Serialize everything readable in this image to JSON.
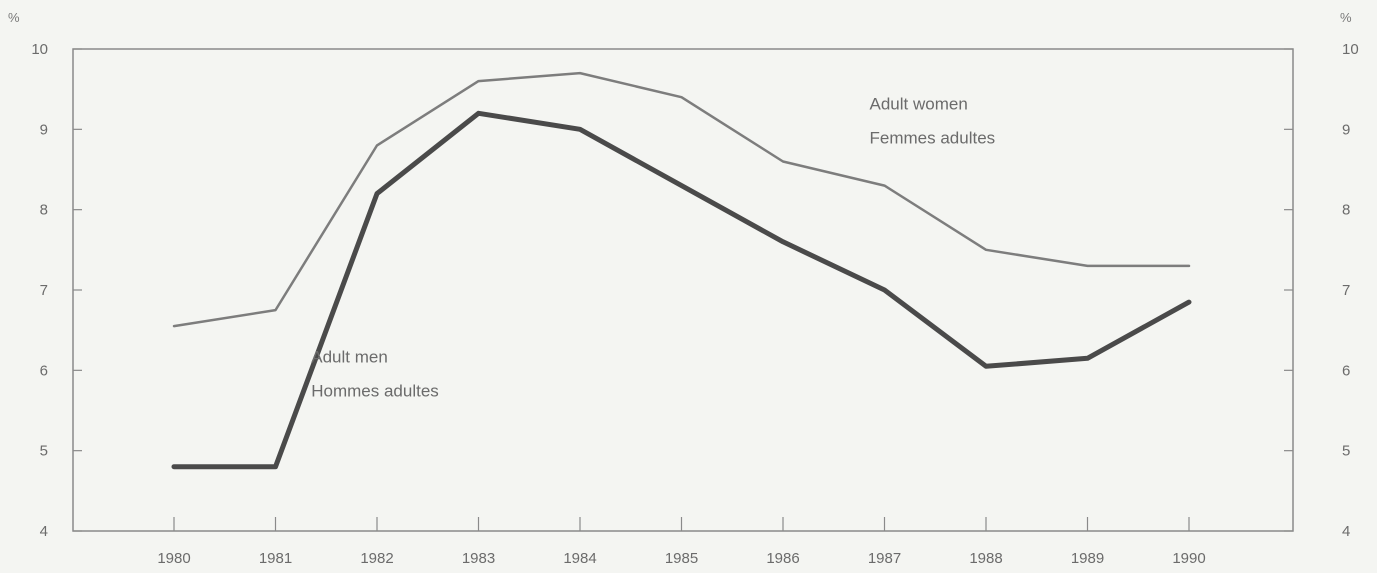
{
  "chart_data": {
    "type": "line",
    "x": [
      "1980",
      "1981",
      "1982",
      "1983",
      "1984",
      "1985",
      "1986",
      "1987",
      "1988",
      "1989",
      "1990"
    ],
    "series": [
      {
        "values": [
          6.55,
          6.75,
          8.8,
          9.6,
          9.7,
          9.4,
          8.6,
          8.3,
          7.5,
          7.3,
          7.3
        ],
        "color": "#7d7d7d"
      },
      {
        "values": [
          4.8,
          4.8,
          8.2,
          9.2,
          9.0,
          8.3,
          7.6,
          7.0,
          6.05,
          6.15,
          6.85
        ],
        "color": "#4a4a4a"
      }
    ],
    "annotations": [
      {
        "lines": [
          "Adult women",
          "Femmes adultes"
        ],
        "x": "1987",
        "y": 9.25
      },
      {
        "lines": [
          "Adult men",
          "Hommes adultes"
        ],
        "x": "1981.5",
        "y": 6.1
      }
    ],
    "y_ticks": [
      "4",
      "5",
      "6",
      "7",
      "8",
      "9",
      "10"
    ],
    "y_unit_left": "%",
    "y_unit_right": "%",
    "ylim": [
      4,
      10
    ],
    "grid": false,
    "axis_color": "#8a8a8a"
  }
}
